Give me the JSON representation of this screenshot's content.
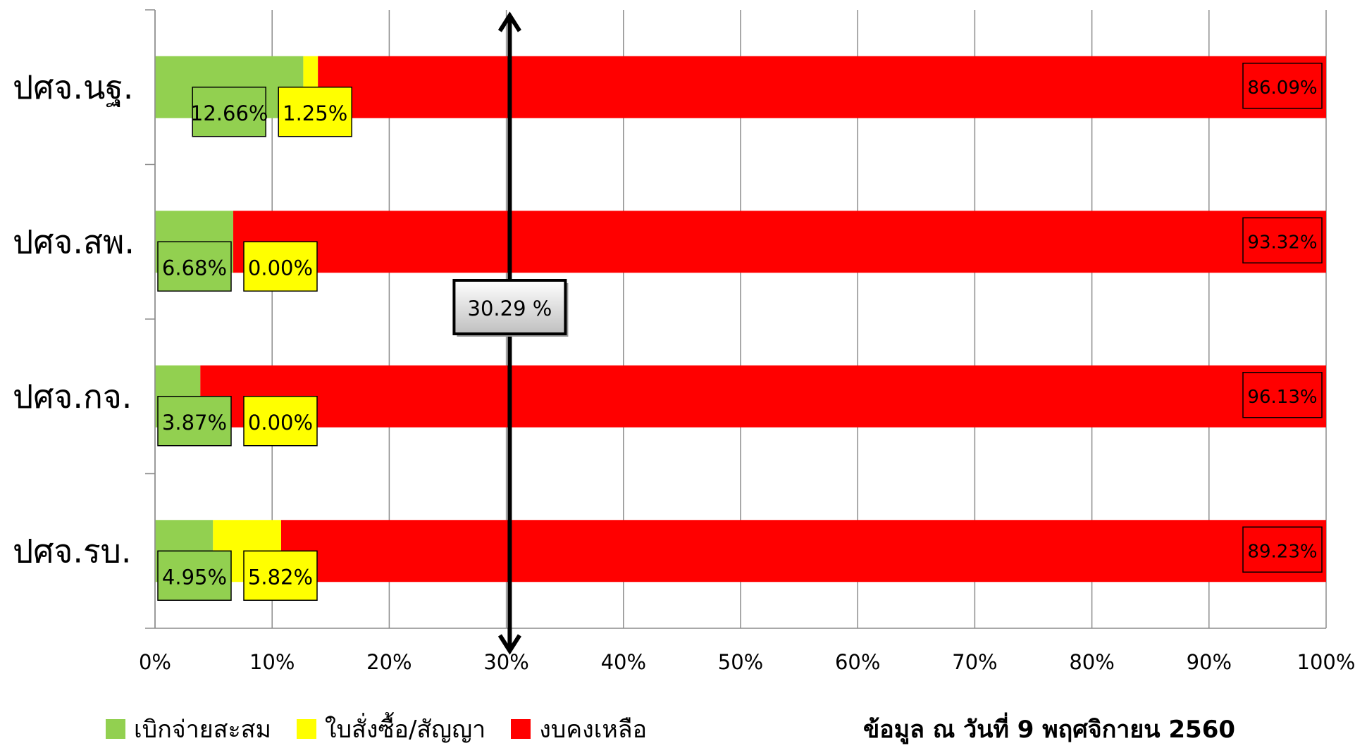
{
  "chart_data": {
    "type": "bar",
    "orientation": "horizontal",
    "stacked": "percent",
    "categories": [
      "ปศจ.นฐ.",
      "ปศจ.สพ.",
      "ปศจ.กจ.",
      "ปศจ.รบ."
    ],
    "series": [
      {
        "name": "เบิกจ่ายสะสม",
        "color": "#92d050",
        "values": [
          12.66,
          6.68,
          3.87,
          4.95
        ],
        "labels": [
          "12.66%",
          "6.68%",
          "3.87%",
          "4.95%"
        ]
      },
      {
        "name": "ใบสั่งซื้อ/สัญญา",
        "color": "#ffff00",
        "values": [
          1.25,
          0.0,
          0.0,
          5.82
        ],
        "labels": [
          "1.25%",
          "0.00%",
          "0.00%",
          "5.82%"
        ]
      },
      {
        "name": "งบคงเหลือ",
        "color": "#ff0000",
        "values": [
          86.09,
          93.32,
          96.13,
          89.23
        ],
        "labels": [
          "86.09%",
          "93.32%",
          "96.13%",
          "89.23%"
        ]
      }
    ],
    "xlim": [
      0,
      100
    ],
    "xticks": [
      "0%",
      "10%",
      "20%",
      "30%",
      "40%",
      "50%",
      "60%",
      "70%",
      "80%",
      "90%",
      "100%"
    ],
    "grid": true,
    "legend_position": "bottom-left",
    "target": {
      "value": 30.29,
      "label": "30.29 %"
    }
  },
  "footnote": "ข้อมูล ณ วันที่ 9 พฤศจิกายน 2560"
}
